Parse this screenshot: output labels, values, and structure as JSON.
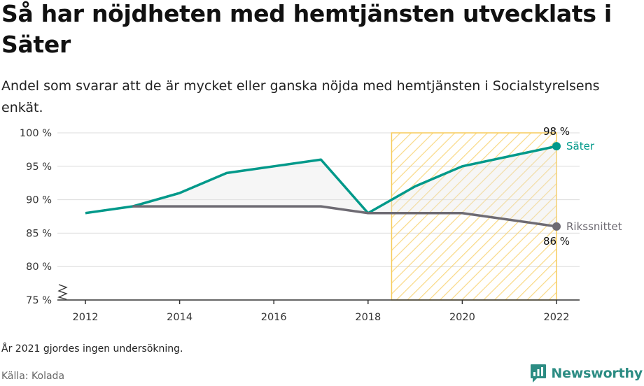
{
  "title": "Så har nöjdheten med hemtjänsten utvecklats i Säter",
  "subtitle": "Andel som svarar att de är mycket eller ganska nöjda med hemtjänsten i Socialstyrelsens enkät.",
  "note": "År 2021 gjordes ingen undersökning.",
  "source": "Källa: Kolada",
  "brand": "Newsworthy",
  "colors": {
    "sater": "#00998a",
    "riket": "#6e6b73",
    "hatch": "#f7cc5c"
  },
  "chart_data": {
    "type": "line",
    "x_ticks": [
      2012,
      2014,
      2016,
      2018,
      2020,
      2022
    ],
    "y_ticks": [
      75,
      80,
      85,
      90,
      95,
      100
    ],
    "y_tick_labels": [
      "75 %",
      "80 %",
      "85 %",
      "90 %",
      "95 %",
      "100 %"
    ],
    "ylim": [
      75,
      100
    ],
    "xlim": [
      2011.5,
      2022.5
    ],
    "y_axis_broken": true,
    "shaded_period": [
      2018.5,
      2022
    ],
    "series": [
      {
        "name": "Säter",
        "x": [
          2012,
          2013,
          2014,
          2015,
          2016,
          2017,
          2018,
          2019,
          2020,
          2022
        ],
        "values": [
          88,
          89,
          91,
          94,
          95,
          96,
          88,
          92,
          95,
          98
        ],
        "end_label": "98 %"
      },
      {
        "name": "Rikssnittet",
        "x": [
          2013,
          2014,
          2015,
          2016,
          2017,
          2018,
          2019,
          2020,
          2022
        ],
        "values": [
          89,
          89,
          89,
          89,
          89,
          88,
          88,
          88,
          86
        ],
        "end_label": "86 %"
      }
    ]
  }
}
